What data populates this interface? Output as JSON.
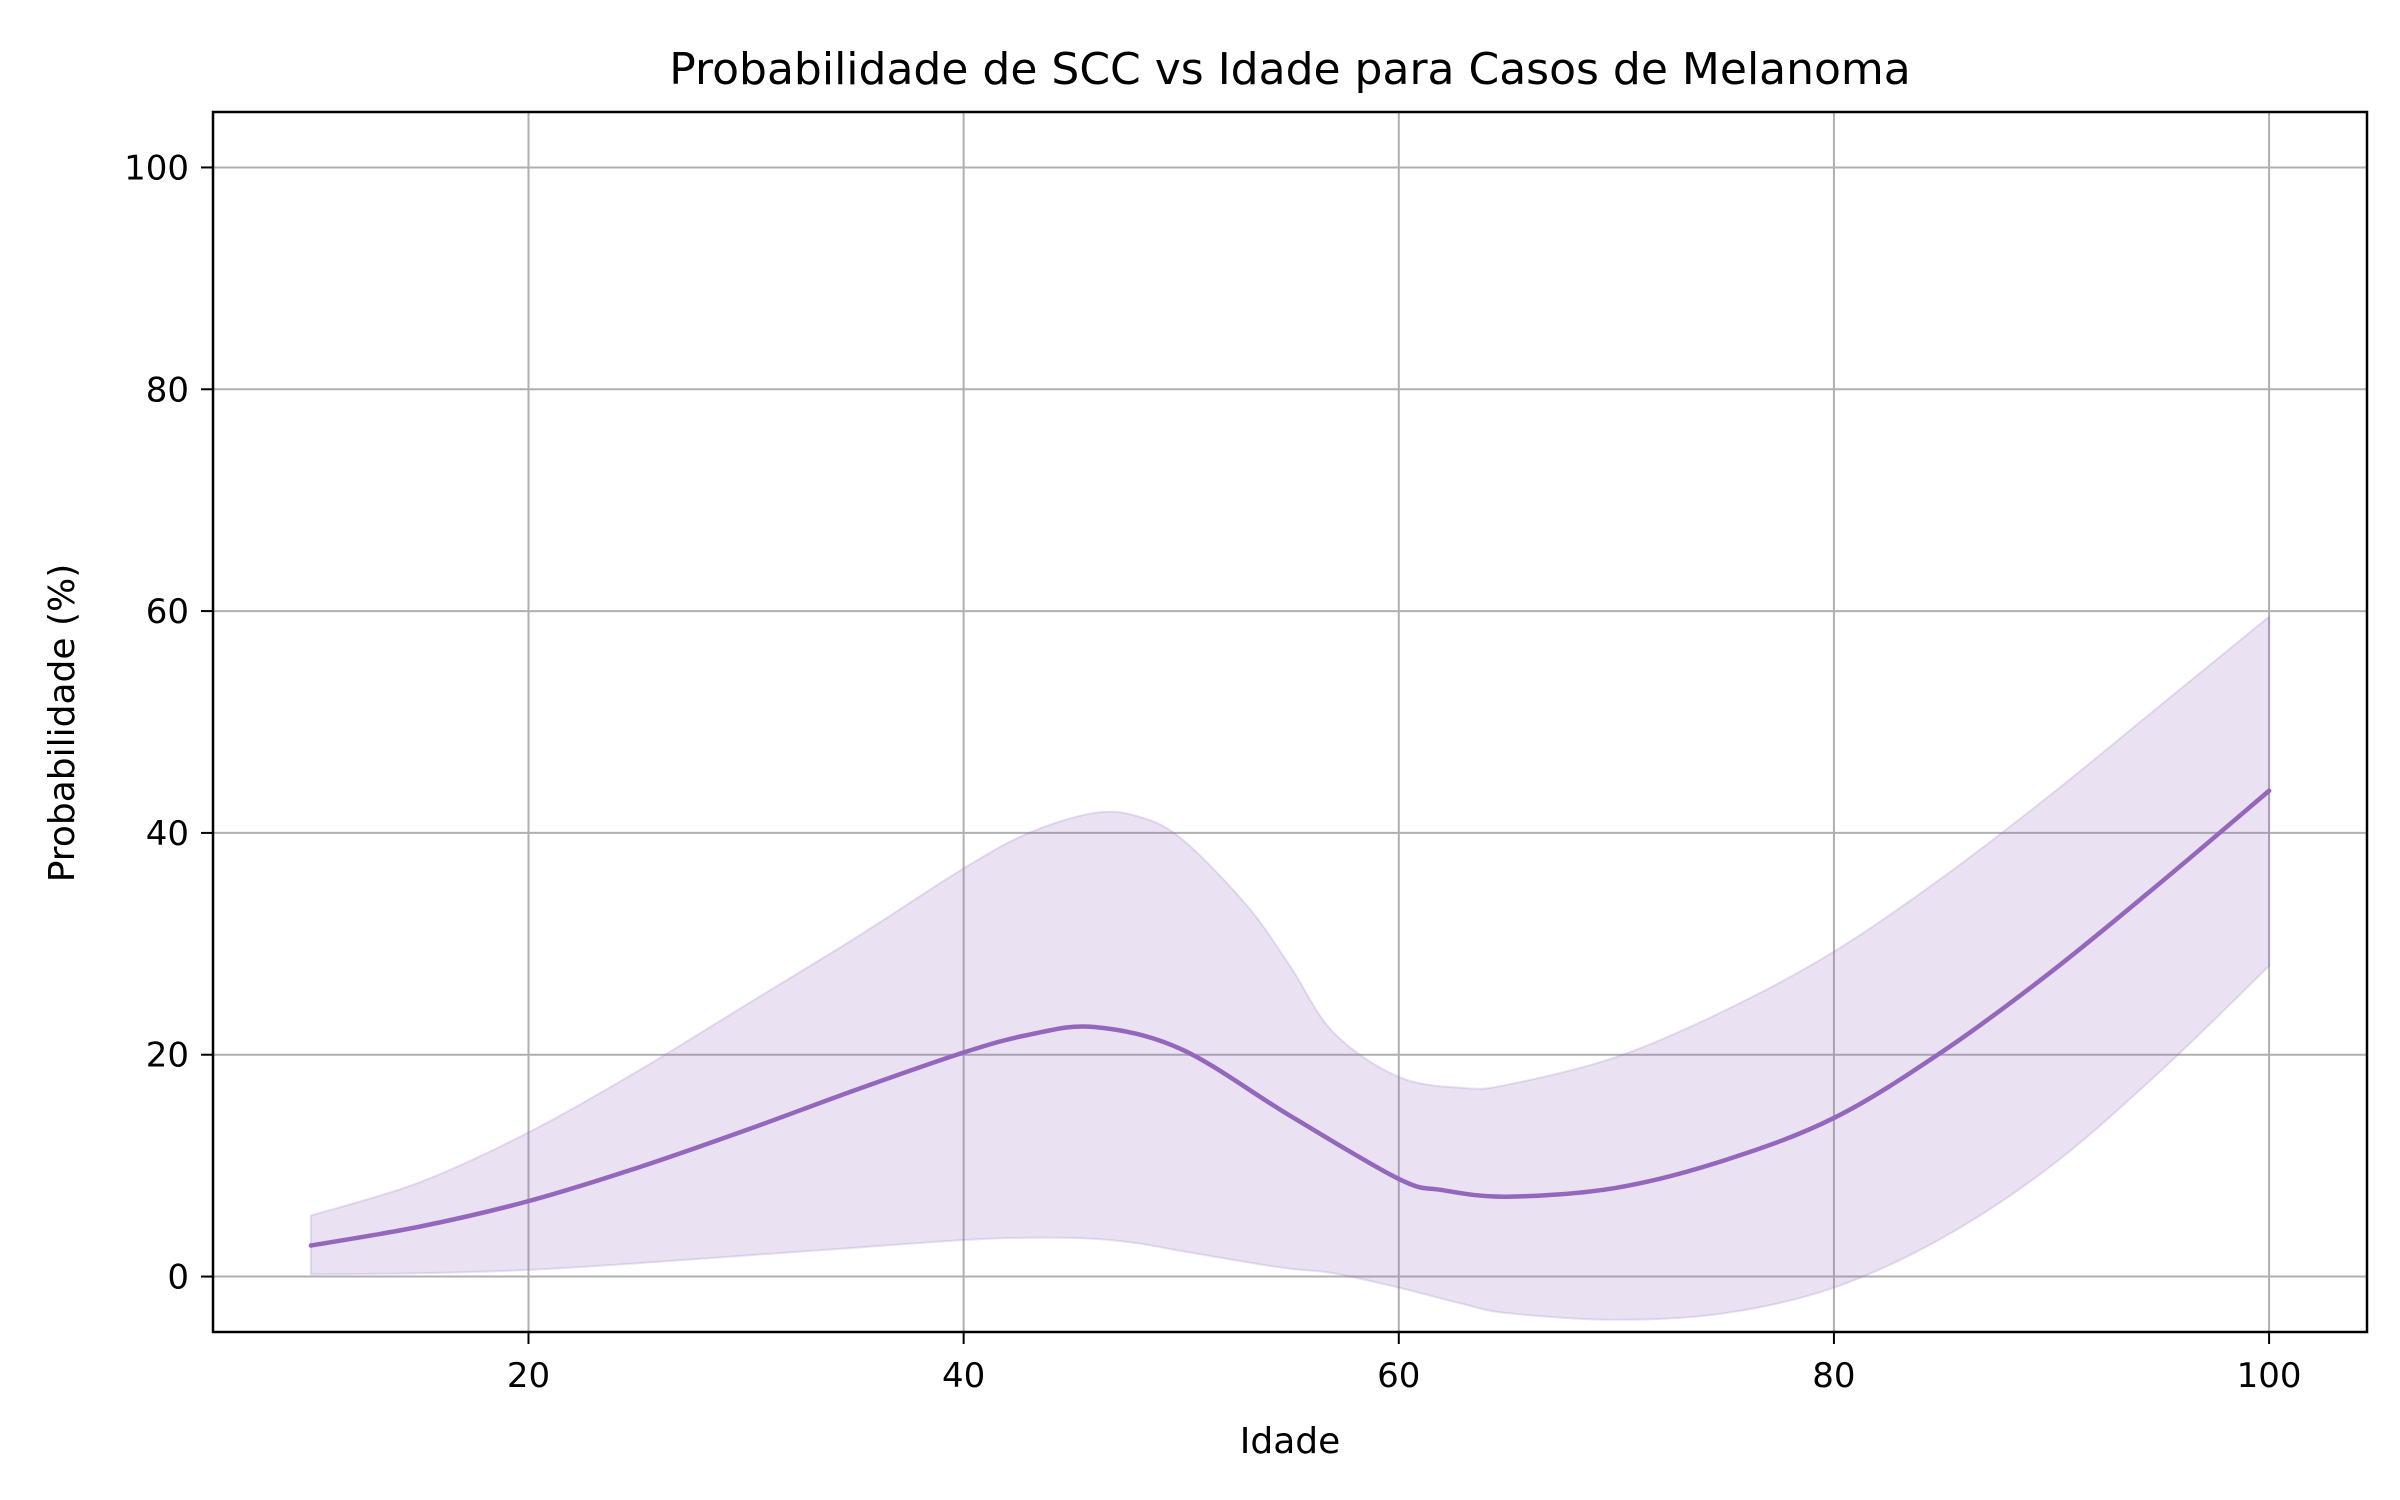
{
  "chart_data": {
    "type": "line",
    "title": "Probabilidade de SCC vs Idade para Casos de Melanoma",
    "xlabel": "Idade",
    "ylabel": "Probabilidade (%)",
    "xlim": [
      5.5,
      104.5
    ],
    "ylim": [
      -5,
      105
    ],
    "xticks": [
      20,
      40,
      60,
      80,
      100
    ],
    "yticks": [
      0,
      20,
      40,
      60,
      80,
      100
    ],
    "xtick_labels": [
      "20",
      "40",
      "60",
      "80",
      "100"
    ],
    "ytick_labels": [
      "0",
      "20",
      "40",
      "60",
      "80",
      "100"
    ],
    "grid": true,
    "legend": "none",
    "colors": {
      "line": "#9467bd",
      "band_fill": "#9467bd",
      "grid": "#b0b0b0",
      "axes": "#000000"
    },
    "series": [
      {
        "x": [
          10,
          15,
          20,
          25,
          30,
          35,
          40,
          43,
          46,
          50,
          55,
          60,
          62,
          65,
          70,
          75,
          80,
          85,
          90,
          95,
          100
        ],
        "values": [
          2.8,
          4.5,
          6.8,
          9.8,
          13.2,
          16.8,
          20.2,
          21.8,
          22.5,
          20.5,
          14.5,
          8.8,
          7.8,
          7.2,
          8.0,
          10.5,
          14.3,
          20.3,
          27.5,
          35.5,
          43.8
        ]
      }
    ],
    "band": {
      "x": [
        10,
        15,
        20,
        25,
        30,
        35,
        40,
        43,
        46,
        48,
        50,
        53,
        55,
        57,
        60,
        63,
        65,
        70,
        75,
        80,
        85,
        90,
        95,
        100
      ],
      "upper": [
        5.5,
        8.5,
        13.0,
        18.5,
        24.5,
        30.5,
        36.8,
        40.0,
        41.8,
        41.5,
        39.5,
        33.5,
        28.0,
        22.0,
        18.0,
        17.0,
        17.3,
        19.8,
        24.0,
        29.3,
        36.0,
        43.5,
        51.5,
        59.5
      ],
      "lower": [
        0.2,
        0.3,
        0.6,
        1.2,
        1.9,
        2.6,
        3.3,
        3.5,
        3.4,
        3.0,
        2.3,
        1.3,
        0.7,
        0.3,
        -1.0,
        -2.5,
        -3.3,
        -3.9,
        -3.3,
        -1.0,
        3.5,
        10.0,
        18.5,
        28.0
      ]
    }
  }
}
